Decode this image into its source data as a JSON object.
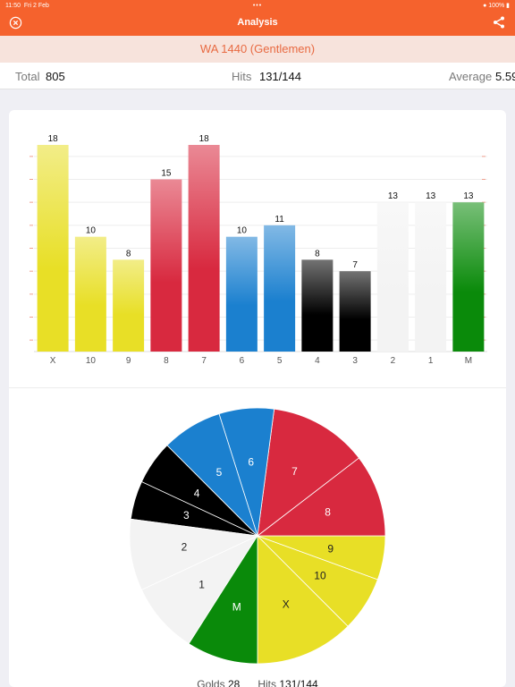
{
  "status": {
    "time": "11:50",
    "date": "Fri 2 Feb",
    "battery": "100%"
  },
  "nav": {
    "title": "Analysis",
    "close_icon": "close-circle-icon",
    "share_icon": "share-icon"
  },
  "round": {
    "name": "WA 1440 (Gentlemen)"
  },
  "summary": {
    "total_label": "Total",
    "total_value": "805",
    "hits_label": "Hits",
    "hits_value": "131/144",
    "average_label": "Average",
    "average_value": "5.59"
  },
  "chart_data": [
    {
      "type": "bar",
      "categories": [
        "X",
        "10",
        "9",
        "8",
        "7",
        "6",
        "5",
        "4",
        "3",
        "2",
        "1",
        "M"
      ],
      "values": [
        18,
        10,
        8,
        15,
        18,
        10,
        11,
        8,
        7,
        13,
        13,
        13
      ],
      "ylim": [
        0,
        18
      ],
      "colors": [
        "#e8df26",
        "#e8df26",
        "#e8df26",
        "#d8293f",
        "#d8293f",
        "#1b80cf",
        "#1b80cf",
        "#000000",
        "#000000",
        "#f3f3f3",
        "#f3f3f3",
        "#0a8a0a"
      ],
      "grid": true
    },
    {
      "type": "pie",
      "labels": [
        "X",
        "10",
        "9",
        "8",
        "7",
        "6",
        "5",
        "4",
        "3",
        "2",
        "1",
        "M"
      ],
      "values": [
        18,
        10,
        8,
        15,
        18,
        10,
        11,
        8,
        7,
        13,
        13,
        13
      ],
      "colors": [
        "#e8df26",
        "#e8df26",
        "#e8df26",
        "#d8293f",
        "#d8293f",
        "#1b80cf",
        "#1b80cf",
        "#000000",
        "#000000",
        "#f3f3f3",
        "#f3f3f3",
        "#0a8a0a"
      ],
      "label_colors": [
        "#222222",
        "#222222",
        "#222222",
        "#ffffff",
        "#ffffff",
        "#ffffff",
        "#ffffff",
        "#ffffff",
        "#ffffff",
        "#222222",
        "#222222",
        "#ffffff"
      ]
    }
  ],
  "footer": {
    "golds_label": "Golds",
    "golds_value": "28",
    "hits_label": "Hits",
    "hits_value": "131/144"
  }
}
